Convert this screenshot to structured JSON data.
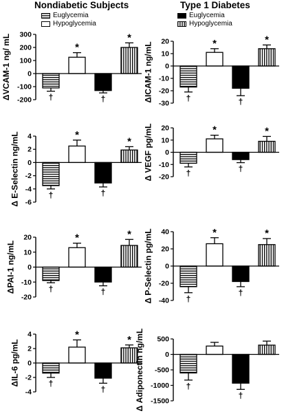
{
  "titles": {
    "left": "Nondiabetic Subjects",
    "right": "Type 1 Diabetes"
  },
  "legends": {
    "left": [
      {
        "label": "Euglycemia",
        "pattern": "hstripe"
      },
      {
        "label": "Hypoglycemia",
        "pattern": "white"
      }
    ],
    "right": [
      {
        "label": "Euglycemia",
        "pattern": "black"
      },
      {
        "label": "Hypoglycemia",
        "pattern": "vstripe"
      }
    ]
  },
  "chart_data": [
    {
      "type": "bar",
      "panel": "left-1",
      "ylabel": "ΔVCAM-1 ng/ mL",
      "ylim": [
        -200,
        300
      ],
      "yticks": [
        -200,
        -100,
        0,
        100,
        200,
        300
      ],
      "series": [
        {
          "name": "Nondiabetic Euglycemia",
          "pattern": "hstripe",
          "value": -110,
          "error": 25,
          "mark": "†"
        },
        {
          "name": "Nondiabetic Hypoglycemia",
          "pattern": "white",
          "value": 125,
          "error": 35,
          "mark": "*"
        },
        {
          "name": "Type 1 Euglycemia",
          "pattern": "black",
          "value": -130,
          "error": 18,
          "mark": "†"
        },
        {
          "name": "Type 1 Hypoglycemia",
          "pattern": "vstripe",
          "value": 200,
          "error": 35,
          "mark": "*"
        }
      ]
    },
    {
      "type": "bar",
      "panel": "right-1",
      "ylabel": "ΔICAM-1 ng/mL",
      "ylim": [
        -30,
        20
      ],
      "yticks": [
        -30,
        -20,
        -10,
        0,
        10,
        20
      ],
      "series": [
        {
          "name": "Nondiabetic Euglycemia",
          "pattern": "hstripe",
          "value": -17,
          "error": 4,
          "mark": "†"
        },
        {
          "name": "Nondiabetic Hypoglycemia",
          "pattern": "white",
          "value": 11,
          "error": 3,
          "mark": "*"
        },
        {
          "name": "Type 1 Euglycemia",
          "pattern": "black",
          "value": -18,
          "error": 6,
          "mark": "†"
        },
        {
          "name": "Type 1 Hypoglycemia",
          "pattern": "vstripe",
          "value": 14,
          "error": 3,
          "mark": "*"
        }
      ]
    },
    {
      "type": "bar",
      "panel": "left-2",
      "ylabel": "Δ E-Selectin ng/mL",
      "ylim": [
        -6,
        4
      ],
      "yticks": [
        -6,
        -4,
        -2,
        0,
        2,
        4
      ],
      "series": [
        {
          "name": "Nondiabetic Euglycemia",
          "pattern": "hstripe",
          "value": -3.5,
          "error": 0.5,
          "mark": "†"
        },
        {
          "name": "Nondiabetic Hypoglycemia",
          "pattern": "white",
          "value": 2.5,
          "error": 0.9,
          "mark": "*"
        },
        {
          "name": "Type 1 Euglycemia",
          "pattern": "black",
          "value": -3.1,
          "error": 0.6,
          "mark": "†"
        },
        {
          "name": "Type 1 Hypoglycemia",
          "pattern": "vstripe",
          "value": 1.9,
          "error": 0.5,
          "mark": "*"
        }
      ]
    },
    {
      "type": "bar",
      "panel": "right-2",
      "ylabel": "Δ VEGF pg/mL",
      "ylim": [
        -20,
        20
      ],
      "yticks": [
        -20,
        -10,
        0,
        10,
        20
      ],
      "series": [
        {
          "name": "Nondiabetic Euglycemia",
          "pattern": "hstripe",
          "value": -9,
          "error": 3,
          "mark": "†"
        },
        {
          "name": "Nondiabetic Hypoglycemia",
          "pattern": "white",
          "value": 11,
          "error": 3,
          "mark": "*"
        },
        {
          "name": "Type 1 Euglycemia",
          "pattern": "black",
          "value": -6,
          "error": 2.5,
          "mark": "†"
        },
        {
          "name": "Type 1 Hypoglycemia",
          "pattern": "vstripe",
          "value": 9,
          "error": 4,
          "mark": "*"
        }
      ]
    },
    {
      "type": "bar",
      "panel": "left-3",
      "ylabel": "ΔPAI-1 ng/mL",
      "ylim": [
        -20,
        20
      ],
      "yticks": [
        -20,
        -10,
        0,
        10,
        20
      ],
      "series": [
        {
          "name": "Nondiabetic Euglycemia",
          "pattern": "hstripe",
          "value": -9,
          "error": 1.5,
          "mark": "†"
        },
        {
          "name": "Nondiabetic Hypoglycemia",
          "pattern": "white",
          "value": 13,
          "error": 3,
          "mark": "*"
        },
        {
          "name": "Type 1 Euglycemia",
          "pattern": "black",
          "value": -10,
          "error": 2.5,
          "mark": "†"
        },
        {
          "name": "Type 1 Hypoglycemia",
          "pattern": "vstripe",
          "value": 14.5,
          "error": 4,
          "mark": "*"
        }
      ]
    },
    {
      "type": "bar",
      "panel": "right-3",
      "ylabel": "Δ P-Selectin pg/mL",
      "ylim": [
        -40,
        40
      ],
      "yticks": [
        -40,
        -20,
        0,
        20,
        40
      ],
      "series": [
        {
          "name": "Nondiabetic Euglycemia",
          "pattern": "hstripe",
          "value": -24,
          "error": 7,
          "mark": "†"
        },
        {
          "name": "Nondiabetic Hypoglycemia",
          "pattern": "white",
          "value": 26,
          "error": 7,
          "mark": "*"
        },
        {
          "name": "Type 1 Euglycemia",
          "pattern": "black",
          "value": -18,
          "error": 6,
          "mark": "†"
        },
        {
          "name": "Type 1 Hypoglycemia",
          "pattern": "vstripe",
          "value": 25,
          "error": 7,
          "mark": "*"
        }
      ]
    },
    {
      "type": "bar",
      "panel": "left-4",
      "ylabel": "ΔIL-6 pg/mL",
      "ylim": [
        -4,
        4
      ],
      "yticks": [
        -4,
        -2,
        0,
        2,
        4
      ],
      "series": [
        {
          "name": "Nondiabetic Euglycemia",
          "pattern": "hstripe",
          "value": -1.4,
          "error": 0.6,
          "mark": "†"
        },
        {
          "name": "Nondiabetic Hypoglycemia",
          "pattern": "white",
          "value": 2.2,
          "error": 1.0,
          "mark": "*"
        },
        {
          "name": "Type 1 Euglycemia",
          "pattern": "black",
          "value": -2.1,
          "error": 0.7,
          "mark": "†"
        },
        {
          "name": "Type 1 Hypoglycemia",
          "pattern": "vstripe",
          "value": 2.1,
          "error": 0.4,
          "mark": "*"
        }
      ]
    },
    {
      "type": "bar",
      "panel": "right-4",
      "ylabel": "Δ Adiponectin ng/mL",
      "ylim": [
        -1500,
        500
      ],
      "yticks": [
        -1500,
        -1000,
        -500,
        0,
        500
      ],
      "series": [
        {
          "name": "Nondiabetic Euglycemia",
          "pattern": "hstripe",
          "value": -600,
          "error": 230,
          "mark": "†"
        },
        {
          "name": "Nondiabetic Hypoglycemia",
          "pattern": "white",
          "value": 270,
          "error": 120,
          "mark": ""
        },
        {
          "name": "Type 1 Euglycemia",
          "pattern": "black",
          "value": -930,
          "error": 200,
          "mark": "†"
        },
        {
          "name": "Type 1 Hypoglycemia",
          "pattern": "vstripe",
          "value": 300,
          "error": 130,
          "mark": ""
        }
      ]
    }
  ]
}
